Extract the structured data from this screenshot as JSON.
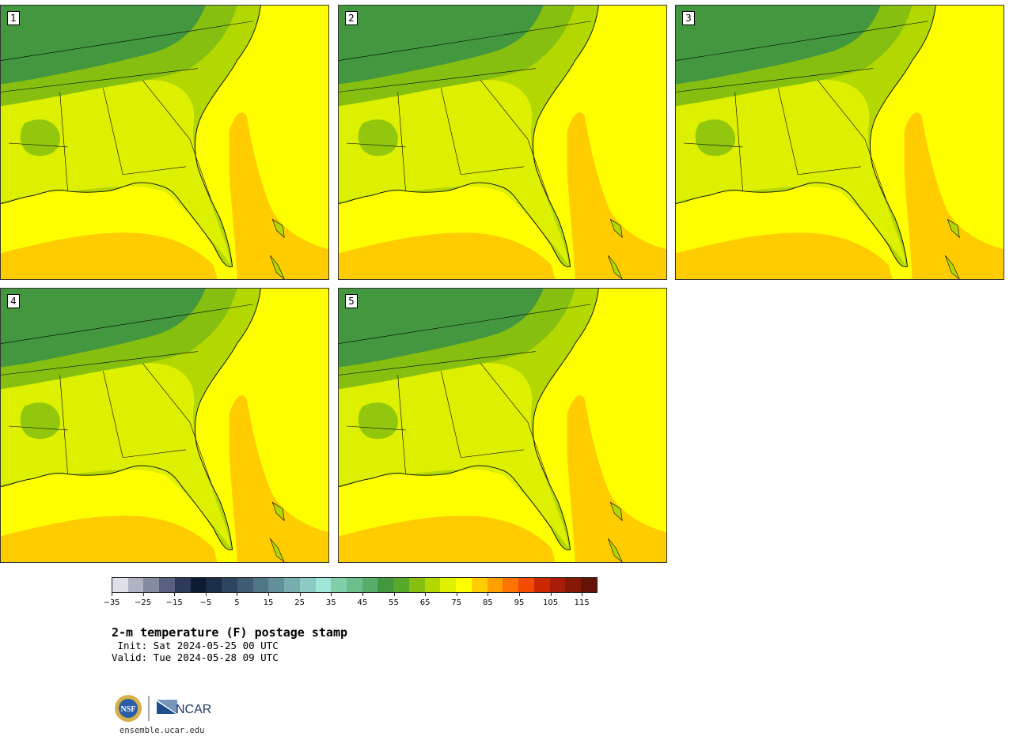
{
  "panels": [
    {
      "label": "1"
    },
    {
      "label": "2"
    },
    {
      "label": "3"
    },
    {
      "label": "4"
    },
    {
      "label": "5"
    }
  ],
  "colorbar": {
    "colors": [
      "#dde0e6",
      "#b0b4c2",
      "#848aa0",
      "#5a6180",
      "#2f3a5a",
      "#0f1b33",
      "#1c2d48",
      "#2e4560",
      "#3f5c72",
      "#4f7686",
      "#62909a",
      "#76aeb0",
      "#8ccac4",
      "#9ee6d6",
      "#7fd0a8",
      "#6cbf8a",
      "#58ad6a",
      "#43973e",
      "#58a82a",
      "#86bf10",
      "#b2d800",
      "#ddf000",
      "#ffff00",
      "#ffcc00",
      "#ff9f00",
      "#ff7400",
      "#f24c00",
      "#cc2800",
      "#a81d0a",
      "#861808",
      "#641406"
    ],
    "tick_labels": [
      "−35",
      "−25",
      "−15",
      "−5",
      "5",
      "15",
      "25",
      "35",
      "45",
      "55",
      "65",
      "75",
      "85",
      "95",
      "105",
      "115"
    ]
  },
  "title": "2-m temperature (F) postage stamp",
  "init": " Init: Sat 2024-05-25 00 UTC",
  "valid": "Valid: Tue 2024-05-28 09 UTC",
  "logos": {
    "nsf": "NSF",
    "ncar": "NCAR"
  },
  "url": "ensemble.ucar.edu"
}
